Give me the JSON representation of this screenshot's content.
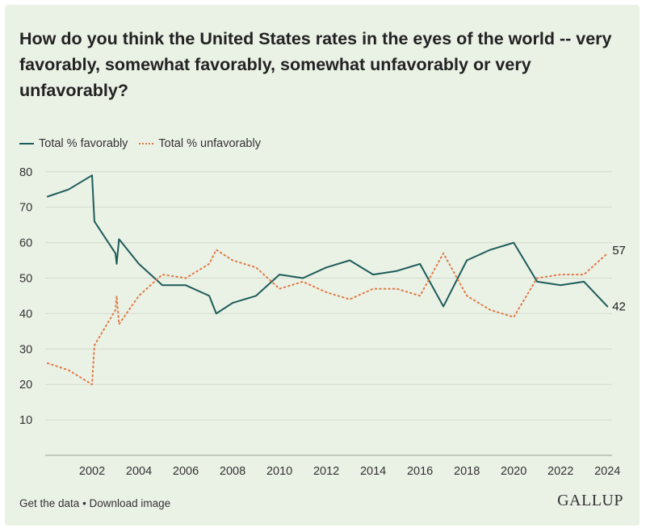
{
  "chart_data": {
    "type": "line",
    "title": "How do you think the United States rates in the eyes of the world -- very favorably, somewhat favorably, somewhat unfavorably or very unfavorably?",
    "xlabel": "",
    "ylabel": "",
    "xlim": [
      2000,
      2024.2
    ],
    "ylim": [
      0,
      82
    ],
    "y_ticks": [
      10,
      20,
      30,
      40,
      50,
      60,
      70,
      80
    ],
    "x_ticks": [
      2002,
      2004,
      2006,
      2008,
      2010,
      2012,
      2014,
      2016,
      2018,
      2020,
      2022,
      2024
    ],
    "grid": true,
    "legend_position": "top-left",
    "series": [
      {
        "name": "Total % favorably",
        "style": "solid",
        "color": "#1e5c5b",
        "points": [
          [
            2000.1,
            73
          ],
          [
            2001,
            75
          ],
          [
            2002,
            79
          ],
          [
            2002.1,
            66
          ],
          [
            2003,
            57
          ],
          [
            2003.05,
            54
          ],
          [
            2003.15,
            61
          ],
          [
            2004,
            54
          ],
          [
            2005,
            48
          ],
          [
            2006,
            48
          ],
          [
            2007,
            45
          ],
          [
            2007.3,
            40
          ],
          [
            2008,
            43
          ],
          [
            2009,
            45
          ],
          [
            2010,
            51
          ],
          [
            2011,
            50
          ],
          [
            2012,
            53
          ],
          [
            2013,
            55
          ],
          [
            2014,
            51
          ],
          [
            2015,
            52
          ],
          [
            2016,
            54
          ],
          [
            2017,
            42
          ],
          [
            2018,
            55
          ],
          [
            2019,
            58
          ],
          [
            2020,
            60
          ],
          [
            2021,
            49
          ],
          [
            2022,
            48
          ],
          [
            2023,
            49
          ],
          [
            2024,
            42
          ]
        ]
      },
      {
        "name": "Total % unfavorably",
        "style": "dotted",
        "color": "#e07a45",
        "points": [
          [
            2000.1,
            26
          ],
          [
            2001,
            24
          ],
          [
            2002,
            20
          ],
          [
            2002.1,
            31
          ],
          [
            2003,
            41
          ],
          [
            2003.05,
            45
          ],
          [
            2003.15,
            37
          ],
          [
            2004,
            45
          ],
          [
            2005,
            51
          ],
          [
            2006,
            50
          ],
          [
            2007,
            54
          ],
          [
            2007.3,
            58
          ],
          [
            2008,
            55
          ],
          [
            2009,
            53
          ],
          [
            2010,
            47
          ],
          [
            2011,
            49
          ],
          [
            2012,
            46
          ],
          [
            2013,
            44
          ],
          [
            2014,
            47
          ],
          [
            2015,
            47
          ],
          [
            2016,
            45
          ],
          [
            2017,
            57
          ],
          [
            2018,
            45
          ],
          [
            2019,
            41
          ],
          [
            2020,
            39
          ],
          [
            2021,
            50
          ],
          [
            2022,
            51
          ],
          [
            2023,
            51
          ],
          [
            2024,
            57
          ]
        ]
      }
    ],
    "end_labels": [
      "57",
      "42"
    ]
  },
  "footer": {
    "get_data": "Get the data",
    "separator": " • ",
    "download": "Download image"
  },
  "logo_text": "GALLUP"
}
